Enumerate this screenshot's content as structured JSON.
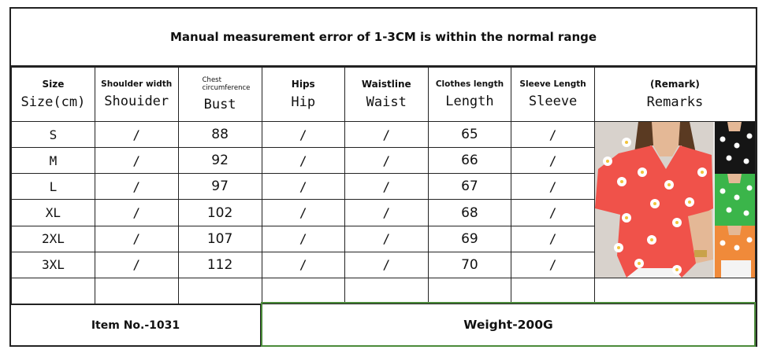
{
  "title": "Manual measurement error of 1-3CM is within the normal range",
  "headers": [
    {
      "top": "Size",
      "bottom": "Size(cm)"
    },
    {
      "top": "Shoulder width",
      "bottom": "Shouider"
    },
    {
      "top": "Chest circumference",
      "bottom": "Bust"
    },
    {
      "top": "Hips",
      "bottom": "Hip"
    },
    {
      "top": "Waistline",
      "bottom": "Waist"
    },
    {
      "top": "Clothes length",
      "bottom": "Length"
    },
    {
      "top": "Sleeve Length",
      "bottom": "Sleeve"
    },
    {
      "top": "(Remark)",
      "bottom": "Remarks"
    }
  ],
  "rows": [
    {
      "size": "S",
      "shoulder": "/",
      "bust": "88",
      "hip": "/",
      "waist": "/",
      "length": "65",
      "sleeve": "/"
    },
    {
      "size": "M",
      "shoulder": "/",
      "bust": "92",
      "hip": "/",
      "waist": "/",
      "length": "66",
      "sleeve": "/"
    },
    {
      "size": "L",
      "shoulder": "/",
      "bust": "97",
      "hip": "/",
      "waist": "/",
      "length": "67",
      "sleeve": "/"
    },
    {
      "size": "XL",
      "shoulder": "/",
      "bust": "102",
      "hip": "/",
      "waist": "/",
      "length": "68",
      "sleeve": "/"
    },
    {
      "size": "2XL",
      "shoulder": "/",
      "bust": "107",
      "hip": "/",
      "waist": "/",
      "length": "69",
      "sleeve": "/"
    },
    {
      "size": "3XL",
      "shoulder": "/",
      "bust": "112",
      "hip": "/",
      "waist": "/",
      "length": "70",
      "sleeve": "/"
    }
  ],
  "footer": {
    "item_no": "Item No.-1031",
    "weight": "Weight-200G"
  },
  "colors": {
    "border": "#222222",
    "footer_highlight": "#4a8a3a",
    "shirt_red": "#f0524a",
    "shirt_black": "#151515",
    "shirt_green": "#3bb54a",
    "shirt_orange": "#f08a3a"
  }
}
